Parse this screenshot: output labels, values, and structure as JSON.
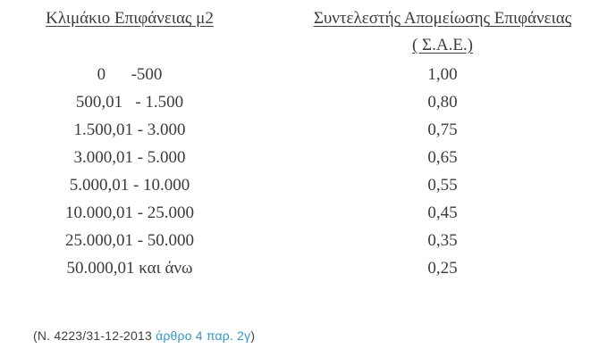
{
  "table": {
    "col1_header": "Κλιμάκιο Επιφάνειας μ2",
    "col2_header_line1": "Συντελεστής Απομείωσης Επιφάνειας",
    "col2_header_line2": "( Σ.Α.Ε.)",
    "rows": [
      {
        "range": "0      -500",
        "coefficient": "1,00"
      },
      {
        "range": "500,01   - 1.500",
        "coefficient": "0,80"
      },
      {
        "range": "1.500,01 - 3.000",
        "coefficient": "0,75"
      },
      {
        "range": "3.000,01 - 5.000",
        "coefficient": "0,65"
      },
      {
        "range": "5.000,01 - 10.000",
        "coefficient": "0,55"
      },
      {
        "range": "10.000,01 - 25.000",
        "coefficient": "0,45"
      },
      {
        "range": "25.000,01 - 50.000",
        "coefficient": "0,35"
      },
      {
        "range": "50.000,01 και άνω",
        "coefficient": "0,25"
      }
    ]
  },
  "footnote": {
    "prefix": "(N. 4223/31-12-2013 ",
    "link": "άρθρο 4 παρ. 2γ",
    "suffix": ")"
  },
  "colors": {
    "text": "#3b3b3b",
    "footnote_text": "#3f3f3f",
    "link_blue": "#2e96d0"
  }
}
